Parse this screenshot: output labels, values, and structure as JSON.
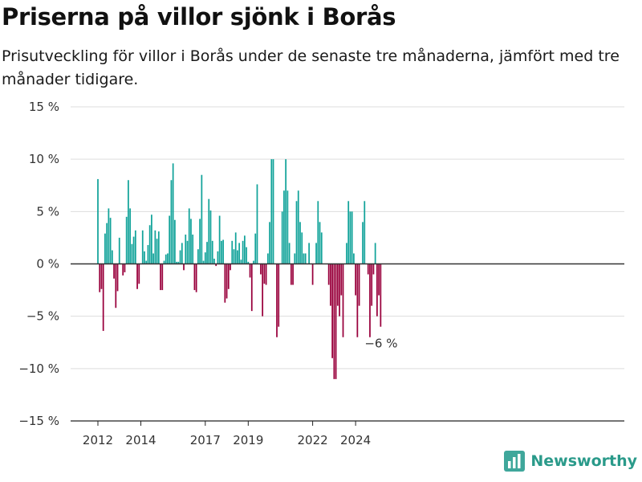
{
  "title": "Priserna på villor sjönk i Borås",
  "subtitle": "Prisutveckling för villor i Borås under de senaste tre månaderna, jämfört med tre månader tidigare.",
  "brand": {
    "name": "Newsworthy",
    "icon": "newsworthy-logo-icon"
  },
  "colors": {
    "positive": "#12a39a",
    "negative": "#99003c",
    "grid": "#dddddd",
    "zero": "#333333"
  },
  "chart_data": {
    "type": "bar",
    "title": "Priserna på villor sjönk i Borås",
    "subtitle": "Prisutveckling för villor i Borås under de senaste tre månaderna, jämfört med tre månader tidigare.",
    "x_unit": "month",
    "start": "2012-01",
    "ylim": [
      -15,
      15
    ],
    "y_ticks": [
      15,
      10,
      5,
      0,
      -5,
      -10,
      -15
    ],
    "y_tick_labels": [
      "15 %",
      "10 %",
      "5 %",
      "0 %",
      "−5 %",
      "−10 %",
      "−15 %"
    ],
    "x_ticks": [
      "2012-01",
      "2014-01",
      "2017-01",
      "2019-01",
      "2022-01",
      "2024-01"
    ],
    "x_tick_labels": [
      "2012",
      "2014",
      "2017",
      "2019",
      "2022",
      "2024"
    ],
    "grid": true,
    "annotation": {
      "text": "−6 %",
      "target": "last"
    },
    "values": [
      8.1,
      -2.7,
      -2.4,
      -6.4,
      2.9,
      3.9,
      5.3,
      4.4,
      1.3,
      -1.4,
      -4.2,
      -2.6,
      2.5,
      0,
      -1.1,
      -0.8,
      4.5,
      8.0,
      5.3,
      1.9,
      2.6,
      3.2,
      -2.4,
      -1.9,
      0,
      3.2,
      1.2,
      0.3,
      1.8,
      3.7,
      4.7,
      1.0,
      3.2,
      2.4,
      3.1,
      -2.5,
      -2.5,
      0.3,
      0.9,
      1.0,
      4.6,
      8.0,
      9.6,
      4.2,
      0.2,
      0.2,
      1.3,
      2.0,
      -0.6,
      2.8,
      2.2,
      5.3,
      4.3,
      2.8,
      -2.5,
      -2.7,
      1.4,
      4.3,
      8.5,
      0.3,
      1.1,
      2.1,
      6.2,
      5.1,
      2.2,
      0.5,
      -0.2,
      1.2,
      4.6,
      2.2,
      2.3,
      -3.7,
      -3.3,
      -2.4,
      -0.6,
      2.2,
      1.4,
      3.0,
      1.3,
      2.0,
      0.4,
      2.2,
      2.7,
      1.6,
      0.2,
      -1.3,
      -4.5,
      0.3,
      2.9,
      7.6,
      0,
      -1.0,
      -5.0,
      -1.9,
      -2.0,
      1.0,
      4.0,
      10.0,
      10.0,
      0,
      -7.0,
      -6.0,
      0,
      5.0,
      7.0,
      10.0,
      7.0,
      2.0,
      -2.0,
      -2.0,
      1.0,
      6.0,
      7.0,
      4.0,
      3.0,
      1.0,
      1.0,
      0,
      2.0,
      0,
      -2.0,
      0,
      2.0,
      6.0,
      4.0,
      3.0,
      0,
      0,
      0,
      -2.0,
      -4.0,
      -9.0,
      -11.0,
      -11.0,
      -4.0,
      -5.0,
      -3.0,
      -7.0,
      0,
      2.0,
      6.0,
      5.0,
      5.0,
      1.0,
      -3.0,
      -7.0,
      -4.0,
      0,
      4.0,
      6.0,
      0,
      -1.0,
      -7.0,
      -4.0,
      -1.0,
      2.0,
      -5.0,
      -3.0,
      -6.0
    ]
  }
}
